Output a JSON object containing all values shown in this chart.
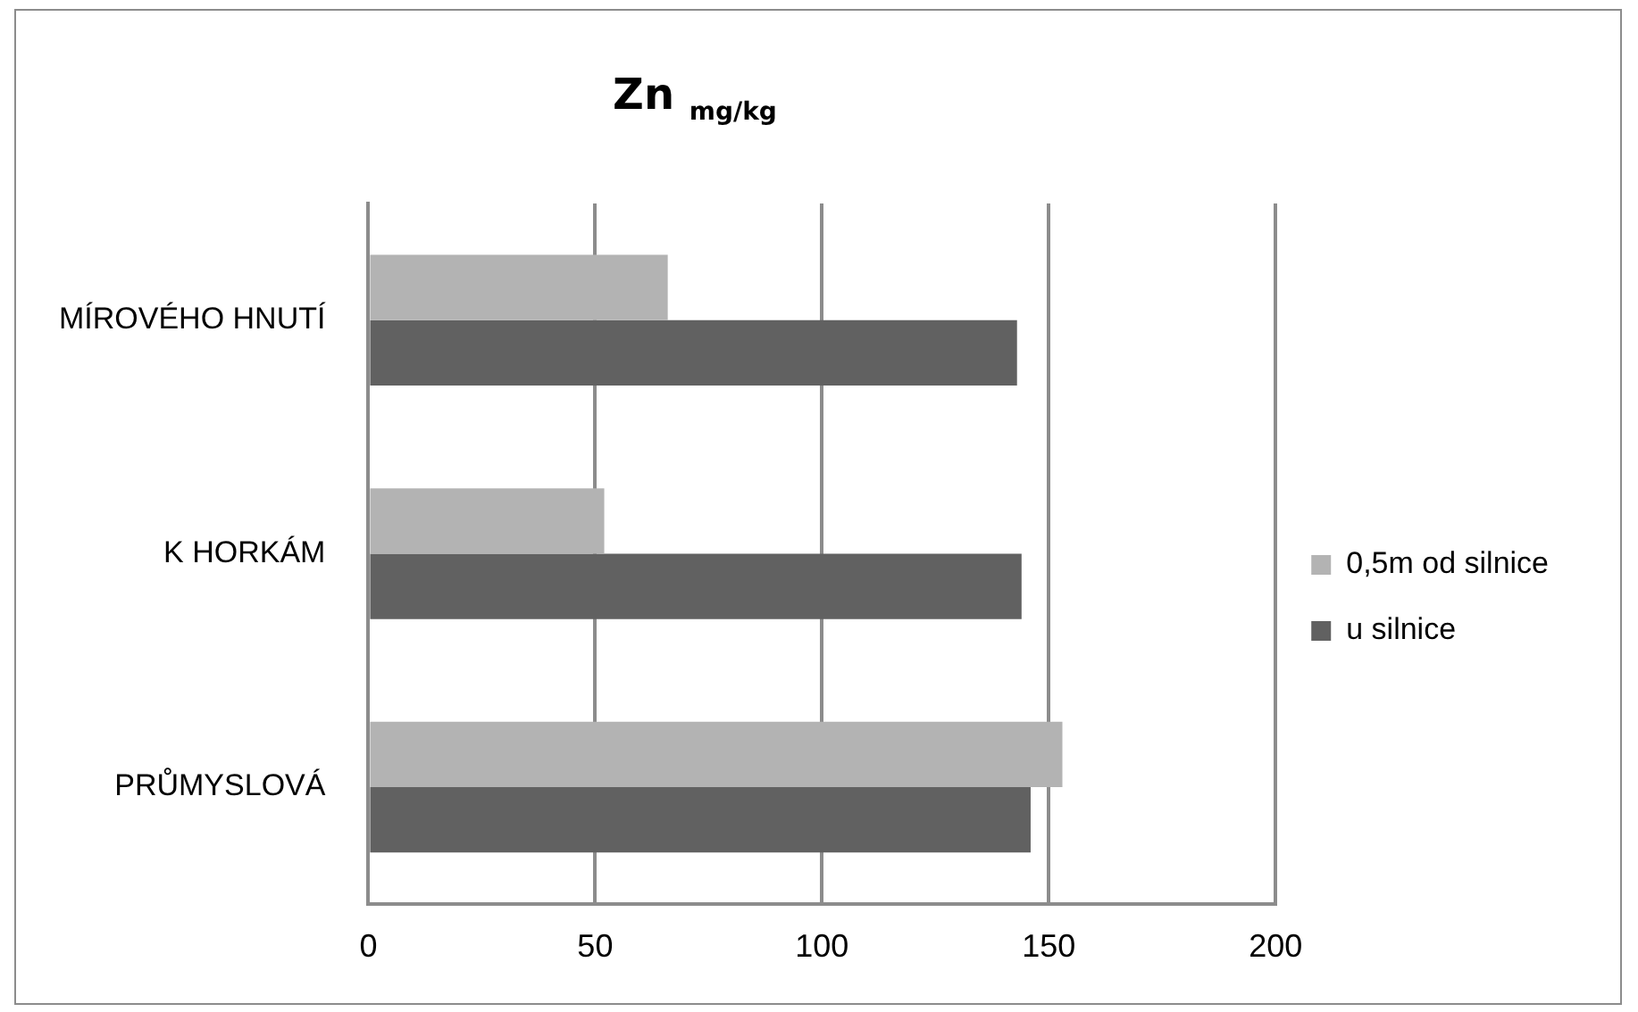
{
  "chart_data": {
    "type": "bar",
    "title": "Zn $_{mg/kg}$",
    "orientation": "horizontal",
    "categories": [
      "MÍROVÉHO HNUTÍ",
      "K HORKÁM",
      "PRŮMYSLOVÁ"
    ],
    "series": [
      {
        "name": "0,5m od silnice",
        "color": "#b3b3b3",
        "values": [
          66,
          52,
          153
        ]
      },
      {
        "name": "u silnice",
        "color": "#616161",
        "values": [
          143,
          144,
          146
        ]
      }
    ],
    "xlim": [
      0,
      200
    ],
    "xticks": [
      0,
      50,
      100,
      150,
      200
    ],
    "grid": "x",
    "legend": "right"
  }
}
